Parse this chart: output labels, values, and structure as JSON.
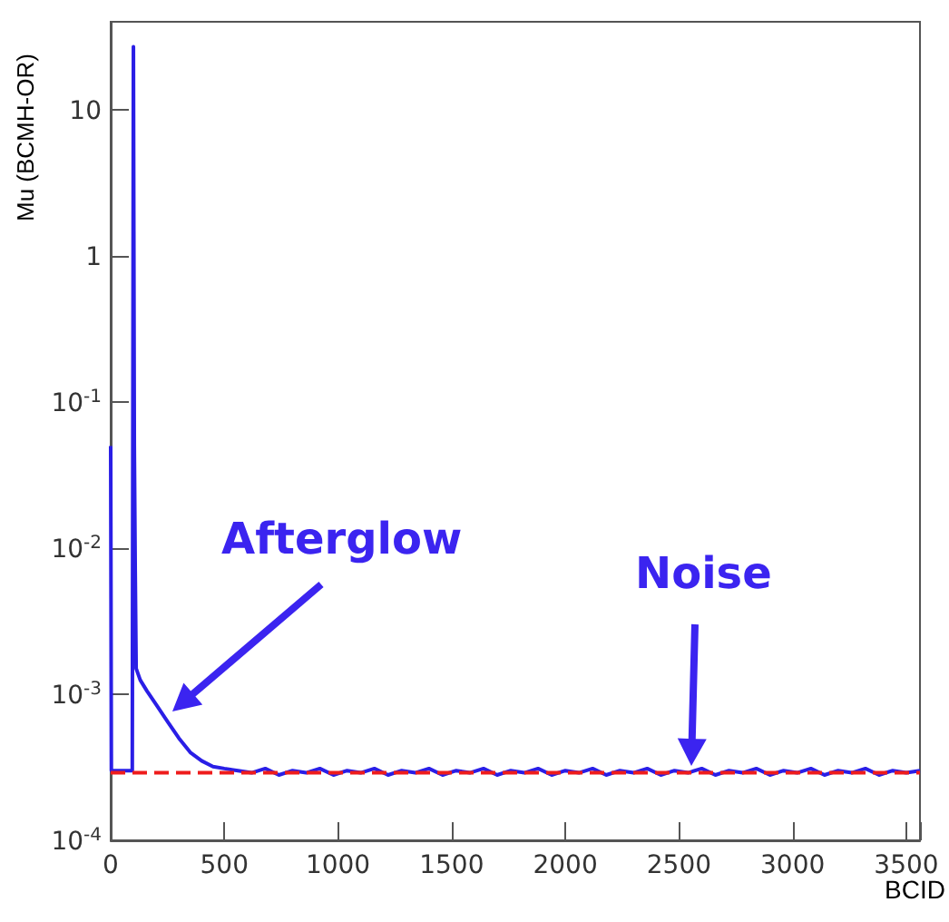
{
  "chart_data": {
    "type": "line",
    "xlabel": "BCID",
    "ylabel": "Mu (BCMH-OR)",
    "log": "y",
    "grid": false,
    "marker": "none",
    "line_style": "solid",
    "xlim": [
      0,
      3560
    ],
    "xticks": [
      0,
      500,
      1000,
      1500,
      2000,
      2500,
      3000,
      3500
    ],
    "ylim": [
      0.0001,
      40
    ],
    "yticks": [
      {
        "value": 0.0001,
        "label": "10$^{-4}$"
      },
      {
        "value": 0.001,
        "label": "10$^{-3}$"
      },
      {
        "value": 0.01,
        "label": "10$^{-2}$"
      },
      {
        "value": 0.1,
        "label": "10$^{-1}$"
      },
      1,
      10
    ],
    "series": [
      {
        "color": "#2a1ee6",
        "x": [
          0,
          3,
          95,
          100,
          104,
          108,
          112,
          130,
          160,
          200,
          250,
          300,
          350,
          400,
          450,
          500,
          560,
          620,
          680,
          740,
          800,
          860,
          920,
          980,
          1040,
          1100,
          1160,
          1220,
          1280,
          1340,
          1400,
          1460,
          1520,
          1580,
          1640,
          1700,
          1760,
          1820,
          1880,
          1940,
          2000,
          2060,
          2120,
          2180,
          2240,
          2300,
          2360,
          2420,
          2480,
          2540,
          2600,
          2660,
          2720,
          2780,
          2840,
          2900,
          2960,
          3020,
          3080,
          3140,
          3200,
          3260,
          3320,
          3380,
          3440,
          3500,
          3560
        ],
        "values": [
          0.05,
          0.0003,
          0.0003,
          27,
          0.05,
          0.007,
          0.0015,
          0.00125,
          0.00105,
          0.00085,
          0.00065,
          0.0005,
          0.0004,
          0.00035,
          0.00032,
          0.00031,
          0.0003,
          0.00029,
          0.00031,
          0.00028,
          0.0003,
          0.00029,
          0.00031,
          0.00028,
          0.0003,
          0.00029,
          0.00031,
          0.00028,
          0.0003,
          0.00029,
          0.00031,
          0.00028,
          0.0003,
          0.00029,
          0.00031,
          0.00028,
          0.0003,
          0.00029,
          0.00031,
          0.00028,
          0.0003,
          0.00029,
          0.00031,
          0.00028,
          0.0003,
          0.00029,
          0.00031,
          0.00028,
          0.0003,
          0.00029,
          0.00031,
          0.00028,
          0.0003,
          0.00029,
          0.00031,
          0.00028,
          0.0003,
          0.00029,
          0.00031,
          0.00028,
          0.0003,
          0.00029,
          0.00031,
          0.00028,
          0.0003,
          0.00029,
          0.0003
        ]
      }
    ],
    "ref_lines": [
      {
        "axis": "y",
        "value": 0.00029,
        "color": "#ee1c1c",
        "line_style": "dashed"
      }
    ],
    "annotations": [
      "Afterglow",
      "Noise"
    ]
  }
}
